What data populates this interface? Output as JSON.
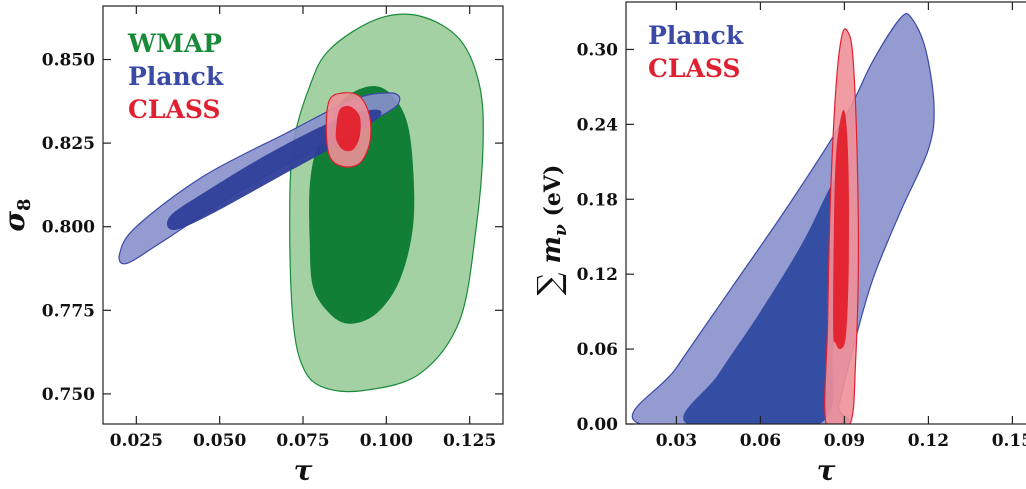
{
  "chart_data": [
    {
      "type": "scatter",
      "subtype": "confidence-contours",
      "xlabel": "τ",
      "ylabel": "σ8",
      "ylabel_sub": "8",
      "xlim": [
        0.015,
        0.135
      ],
      "ylim": [
        0.741,
        0.866
      ],
      "xticks": [
        0.025,
        0.05,
        0.075,
        0.1,
        0.125
      ],
      "xtick_labels": [
        "0.025",
        "0.050",
        "0.075",
        "0.100",
        "0.125"
      ],
      "yticks": [
        0.75,
        0.775,
        0.8,
        0.825,
        0.85
      ],
      "ytick_labels": [
        "0.750",
        "0.775",
        "0.800",
        "0.825",
        "0.850"
      ],
      "legend_position": "top-left",
      "grid": false,
      "series": [
        {
          "name": "WMAP",
          "color": "#1a8a3a",
          "outer_color": "#99cc99",
          "inner_color": "#0a7a30",
          "contours": [
            {
              "level": "2sigma",
              "points": [
                [
                  0.077,
                  0.842
                ],
                [
                  0.083,
                  0.853
                ],
                [
                  0.097,
                  0.862
                ],
                [
                  0.11,
                  0.863
                ],
                [
                  0.122,
                  0.856
                ],
                [
                  0.128,
                  0.842
                ],
                [
                  0.129,
                  0.824
                ],
                [
                  0.127,
                  0.8
                ],
                [
                  0.122,
                  0.772
                ],
                [
                  0.11,
                  0.756
                ],
                [
                  0.093,
                  0.751
                ],
                [
                  0.081,
                  0.752
                ],
                [
                  0.075,
                  0.758
                ],
                [
                  0.072,
                  0.772
                ],
                [
                  0.071,
                  0.8
                ],
                [
                  0.072,
                  0.824
                ]
              ]
            },
            {
              "level": "1sigma",
              "points": [
                [
                  0.083,
                  0.83
                ],
                [
                  0.087,
                  0.838
                ],
                [
                  0.095,
                  0.842
                ],
                [
                  0.101,
                  0.84
                ],
                [
                  0.106,
                  0.832
                ],
                [
                  0.108,
                  0.818
                ],
                [
                  0.108,
                  0.8
                ],
                [
                  0.104,
                  0.784
                ],
                [
                  0.097,
                  0.774
                ],
                [
                  0.089,
                  0.771
                ],
                [
                  0.083,
                  0.774
                ],
                [
                  0.078,
                  0.782
                ],
                [
                  0.077,
                  0.796
                ],
                [
                  0.077,
                  0.812
                ],
                [
                  0.079,
                  0.823
                ]
              ]
            }
          ]
        },
        {
          "name": "Planck",
          "color": "#3b4aa6",
          "outer_color": "#8890cc",
          "inner_color": "#2e3e99",
          "contours": [
            {
              "level": "2sigma",
              "points": [
                [
                  0.02,
                  0.792
                ],
                [
                  0.022,
                  0.789
                ],
                [
                  0.032,
                  0.795
                ],
                [
                  0.055,
                  0.81
                ],
                [
                  0.08,
                  0.824
                ],
                [
                  0.1,
                  0.834
                ],
                [
                  0.104,
                  0.838
                ],
                [
                  0.101,
                  0.84
                ],
                [
                  0.09,
                  0.838
                ],
                [
                  0.07,
                  0.828
                ],
                [
                  0.045,
                  0.815
                ],
                [
                  0.025,
                  0.8
                ]
              ]
            },
            {
              "level": "1sigma",
              "points": [
                [
                  0.035,
                  0.803
                ],
                [
                  0.036,
                  0.799
                ],
                [
                  0.046,
                  0.803
                ],
                [
                  0.068,
                  0.815
                ],
                [
                  0.088,
                  0.826
                ],
                [
                  0.098,
                  0.833
                ],
                [
                  0.096,
                  0.835
                ],
                [
                  0.085,
                  0.832
                ],
                [
                  0.065,
                  0.822
                ],
                [
                  0.045,
                  0.81
                ]
              ]
            }
          ]
        },
        {
          "name": "CLASS",
          "color": "#e02030",
          "outer_color": "#f09098",
          "inner_color": "#e4202c",
          "contours": [
            {
              "level": "2sigma",
              "points": [
                [
                  0.082,
                  0.83
                ],
                [
                  0.083,
                  0.838
                ],
                [
                  0.087,
                  0.84
                ],
                [
                  0.092,
                  0.839
                ],
                [
                  0.095,
                  0.833
                ],
                [
                  0.095,
                  0.825
                ],
                [
                  0.092,
                  0.819
                ],
                [
                  0.087,
                  0.818
                ],
                [
                  0.083,
                  0.821
                ]
              ]
            },
            {
              "level": "1sigma",
              "points": [
                [
                  0.085,
                  0.83
                ],
                [
                  0.086,
                  0.835
                ],
                [
                  0.089,
                  0.836
                ],
                [
                  0.092,
                  0.833
                ],
                [
                  0.092,
                  0.827
                ],
                [
                  0.09,
                  0.823
                ],
                [
                  0.087,
                  0.823
                ],
                [
                  0.085,
                  0.826
                ]
              ]
            }
          ]
        }
      ]
    },
    {
      "type": "scatter",
      "subtype": "confidence-contours",
      "xlabel": "τ",
      "ylabel": "∑ m",
      "ylabel_sub": "ν",
      "ylabel_unit": "(eV)",
      "xlim": [
        0.012,
        0.162
      ],
      "ylim": [
        0.0,
        0.338
      ],
      "xticks": [
        0.03,
        0.06,
        0.09,
        0.12,
        0.15
      ],
      "xtick_labels": [
        "0.03",
        "0.06",
        "0.09",
        "0.12",
        "0.15"
      ],
      "yticks": [
        0.0,
        0.06,
        0.12,
        0.18,
        0.24,
        0.3
      ],
      "ytick_labels": [
        "0.00",
        "0.06",
        "0.12",
        "0.18",
        "0.24",
        "0.30"
      ],
      "legend_position": "top-left",
      "grid": false,
      "series": [
        {
          "name": "Planck",
          "color": "#3b4aa6",
          "outer_color": "#8890cc",
          "inner_color": "#2e4aa0",
          "contours": [
            {
              "level": "2sigma",
              "points": [
                [
                  0.017,
                  0.0
                ],
                [
                  0.03,
                  0.045
                ],
                [
                  0.05,
                  0.11
                ],
                [
                  0.07,
                  0.175
                ],
                [
                  0.09,
                  0.245
                ],
                [
                  0.1,
                  0.29
                ],
                [
                  0.11,
                  0.325
                ],
                [
                  0.114,
                  0.325
                ],
                [
                  0.119,
                  0.3
                ],
                [
                  0.122,
                  0.255
                ],
                [
                  0.12,
                  0.22
                ],
                [
                  0.11,
                  0.17
                ],
                [
                  0.1,
                  0.115
                ],
                [
                  0.093,
                  0.06
                ],
                [
                  0.088,
                  0.015
                ],
                [
                  0.086,
                  0.0
                ]
              ]
            },
            {
              "level": "1sigma",
              "points": [
                [
                  0.034,
                  0.0
                ],
                [
                  0.045,
                  0.04
                ],
                [
                  0.06,
                  0.09
                ],
                [
                  0.075,
                  0.145
                ],
                [
                  0.085,
                  0.19
                ],
                [
                  0.089,
                  0.2
                ],
                [
                  0.092,
                  0.18
                ],
                [
                  0.09,
                  0.12
                ],
                [
                  0.086,
                  0.06
                ],
                [
                  0.081,
                  0.0
                ]
              ]
            }
          ]
        },
        {
          "name": "CLASS",
          "color": "#e02030",
          "outer_color": "#f09098",
          "inner_color": "#e4202c",
          "contours": [
            {
              "level": "2sigma",
              "points": [
                [
                  0.0835,
                  0.0
                ],
                [
                  0.084,
                  0.08
                ],
                [
                  0.085,
                  0.18
                ],
                [
                  0.087,
                  0.27
                ],
                [
                  0.089,
                  0.31
                ],
                [
                  0.091,
                  0.315
                ],
                [
                  0.093,
                  0.295
                ],
                [
                  0.0945,
                  0.22
                ],
                [
                  0.095,
                  0.13
                ],
                [
                  0.094,
                  0.05
                ],
                [
                  0.092,
                  0.0
                ]
              ]
            },
            {
              "level": "1sigma",
              "points": [
                [
                  0.086,
                  0.075
                ],
                [
                  0.0862,
                  0.15
                ],
                [
                  0.087,
                  0.215
                ],
                [
                  0.089,
                  0.248
                ],
                [
                  0.0905,
                  0.245
                ],
                [
                  0.0915,
                  0.2
                ],
                [
                  0.0915,
                  0.12
                ],
                [
                  0.0905,
                  0.07
                ],
                [
                  0.0885,
                  0.06
                ],
                [
                  0.0868,
                  0.065
                ]
              ]
            }
          ]
        }
      ]
    }
  ]
}
